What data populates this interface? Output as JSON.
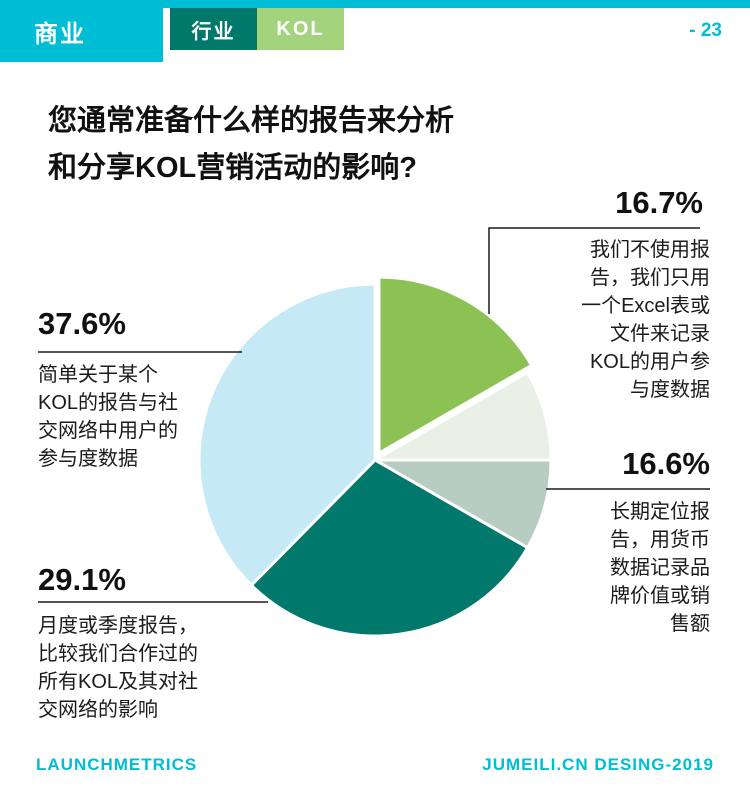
{
  "header": {
    "brand": "商业",
    "tabs": [
      {
        "label": "行业"
      },
      {
        "label": "KOL"
      }
    ],
    "page_number": "- 23"
  },
  "colors": {
    "accent_cyan": "#00bdd6",
    "tab_teal": "#00796a",
    "tab_green": "#a3d37c",
    "slice_green": "#8cc153",
    "slice_mint": "#e9f1e6",
    "slice_sage": "#b8cdc2",
    "slice_dark_teal": "#00786c",
    "slice_pale_cyan": "#c6e9f6"
  },
  "title": {
    "lines": [
      "您通常准备什么样的报告来分析",
      "和分享KOL营销活动的影响?"
    ]
  },
  "chart_data": {
    "type": "pie",
    "title": "您通常准备什么样的报告来分析和分享KOL营销活动的影响?",
    "start_angle_deg": 0,
    "direction": "clockwise",
    "total": 100,
    "legend_position": "callouts",
    "slices": [
      {
        "pct_label": "16.7%",
        "value": 16.7,
        "label": "我们不使用报告，我们只用一个Excel表或文件来记录KOL的用户参与度数据",
        "colors": [
          "#8cc153"
        ],
        "exploded": true
      },
      {
        "pct_label": "16.6%",
        "value": 16.6,
        "label": "长期定位报告，用货币数据记录品牌价值或销售额",
        "colors": [
          "#e9f1e6",
          "#b8cdc2"
        ]
      },
      {
        "pct_label": "29.1%",
        "value": 29.1,
        "label": "月度或季度报告，比较我们合作过的所有KOL及其对社交网络的影响",
        "colors": [
          "#00786c"
        ]
      },
      {
        "pct_label": "37.6%",
        "value": 37.6,
        "label": "简单关于某个KOL的报告与社交网络中用户的参与度数据",
        "colors": [
          "#c6e9f6"
        ]
      }
    ]
  },
  "callouts": {
    "desc_167": [
      "我们不使用报",
      "告，我们只用",
      "一个Excel表或",
      "文件来记录",
      "KOL的用户参",
      "与度数据"
    ],
    "desc_376": [
      "简单关于某个",
      "KOL的报告与社",
      "交网络中用户的",
      "参与度数据"
    ],
    "desc_166": [
      "长期定位报",
      "告，用货币",
      "数据记录品",
      "牌价值或销",
      "售额"
    ],
    "desc_291": [
      "月度或季度报告，",
      "比较我们合作过的",
      "所有KOL及其对社",
      "交网络的影响"
    ]
  },
  "footer": {
    "left": "LAUNCHMETRICS",
    "right": "JUMEILI.CN DESING-2019"
  }
}
